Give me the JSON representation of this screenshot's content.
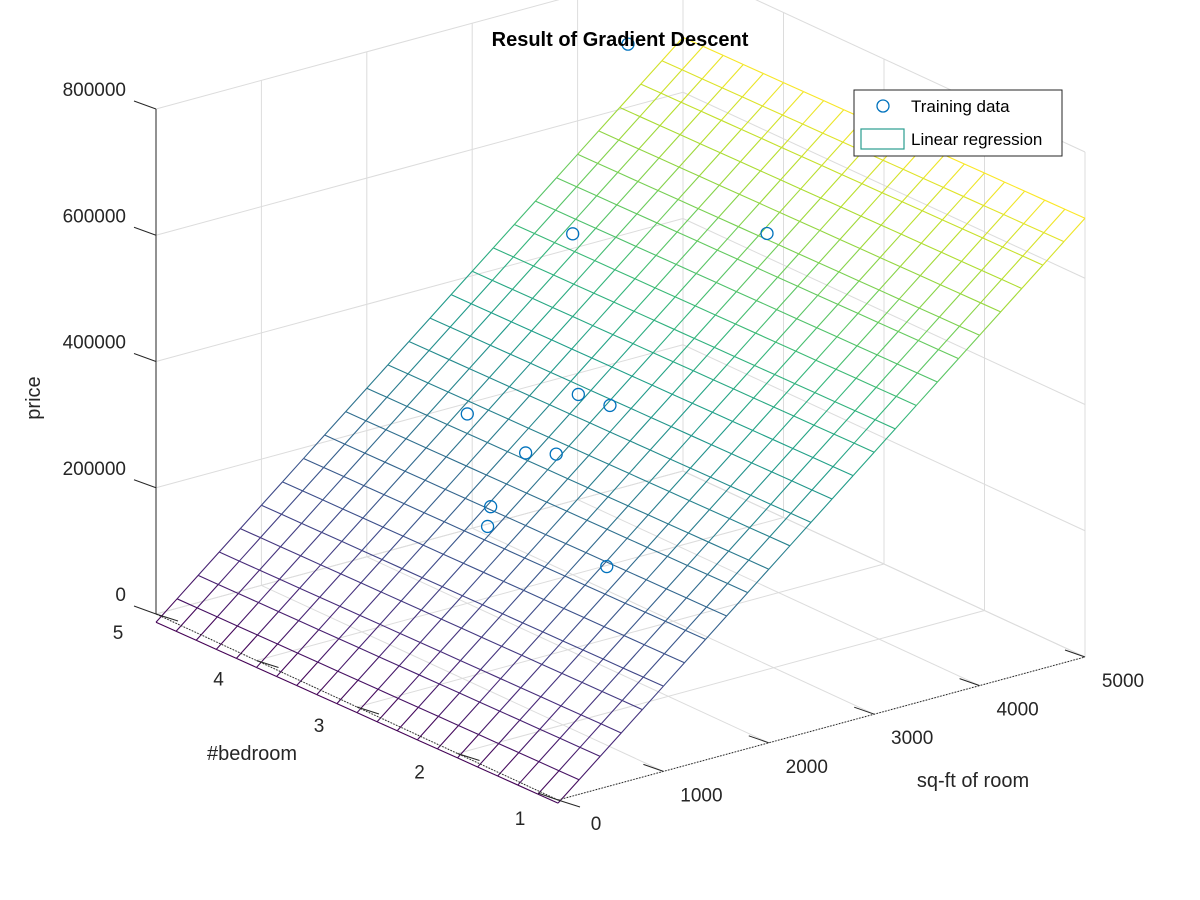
{
  "chart_data": {
    "type": "scatter3d-with-surface",
    "title": "Result of Gradient Descent",
    "xlabel": "sq-ft of room",
    "ylabel": "#bedroom",
    "zlabel": "price",
    "xlim": [
      0,
      5000
    ],
    "ylim": [
      1,
      5
    ],
    "zlim": [
      0,
      800000
    ],
    "xticks": [
      "0",
      "1000",
      "2000",
      "3000",
      "4000",
      "5000"
    ],
    "yticks": [
      "1",
      "2",
      "3",
      "4",
      "5"
    ],
    "zticks": [
      "0",
      "200000",
      "400000",
      "600000",
      "800000"
    ],
    "grid": true,
    "legend_position": "top-right",
    "colormap": "viridis",
    "series": [
      {
        "name": "Training data",
        "kind": "scatter",
        "marker": "circle",
        "color": "#0072bd",
        "points": [
          {
            "x": 2100,
            "y": 3,
            "z": 400000
          },
          {
            "x": 1600,
            "y": 3,
            "z": 330000
          },
          {
            "x": 2400,
            "y": 3,
            "z": 369000
          },
          {
            "x": 1416,
            "y": 2,
            "z": 232000
          },
          {
            "x": 3000,
            "y": 4,
            "z": 540000
          },
          {
            "x": 2000,
            "y": 4,
            "z": 300000
          },
          {
            "x": 1890,
            "y": 3,
            "z": 315000
          },
          {
            "x": 4478,
            "y": 5,
            "z": 699900
          },
          {
            "x": 1268,
            "y": 3,
            "z": 259900
          },
          {
            "x": 3890,
            "y": 3,
            "z": 573900
          },
          {
            "x": 1239,
            "y": 3,
            "z": 229900
          }
        ]
      },
      {
        "name": "Linear regression",
        "kind": "surface",
        "theta": [
          -3000,
          140,
          -2000
        ]
      }
    ]
  },
  "colors": {
    "marker": "#0072bd",
    "axis": "#262626",
    "grid": "#dcdcdc",
    "legend_patch": "#2a9d8f"
  }
}
